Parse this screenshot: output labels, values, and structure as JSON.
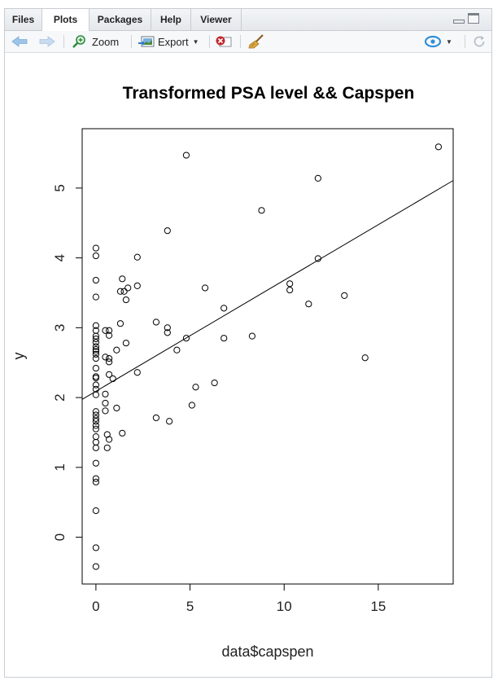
{
  "tabs": [
    {
      "label": "Files",
      "active": false
    },
    {
      "label": "Plots",
      "active": true
    },
    {
      "label": "Packages",
      "active": false
    },
    {
      "label": "Help",
      "active": false
    },
    {
      "label": "Viewer",
      "active": false
    }
  ],
  "toolbar": {
    "zoom_label": "Zoom",
    "export_label": "Export",
    "icons": [
      "back-arrow-icon",
      "forward-arrow-icon",
      "zoom-icon",
      "export-icon",
      "remove-plot-icon",
      "broom-icon",
      "publish-icon",
      "refresh-icon"
    ]
  },
  "colors": {
    "accent_blue": "#2f8fd8",
    "remove_red": "#c0282c",
    "broom": "#b7862c"
  },
  "chart_data": {
    "type": "scatter",
    "title": "Transformed PSA level && Capspen",
    "xlabel": "data$capspen",
    "ylabel": "y",
    "xlim": [
      -0.73,
      18.98
    ],
    "ylim": [
      -0.67,
      5.85
    ],
    "xticks": [
      0,
      5,
      10,
      15
    ],
    "yticks": [
      0,
      1,
      2,
      3,
      4,
      5
    ],
    "grid": false,
    "legend": "none",
    "trendline": {
      "intercept": 2.09,
      "slope": 0.159
    },
    "points": [
      {
        "x": 0,
        "y": 4.14
      },
      {
        "x": 0,
        "y": 4.03
      },
      {
        "x": 0,
        "y": 3.68
      },
      {
        "x": 0,
        "y": 3.44
      },
      {
        "x": 0,
        "y": 3.03
      },
      {
        "x": 0,
        "y": 2.96
      },
      {
        "x": 0,
        "y": 2.88
      },
      {
        "x": 0,
        "y": 2.84
      },
      {
        "x": 0,
        "y": 2.79
      },
      {
        "x": 0,
        "y": 2.73
      },
      {
        "x": 0,
        "y": 2.69
      },
      {
        "x": 0,
        "y": 2.66
      },
      {
        "x": 0,
        "y": 2.62
      },
      {
        "x": 0,
        "y": 2.56
      },
      {
        "x": 0,
        "y": 2.42
      },
      {
        "x": 0,
        "y": 2.3
      },
      {
        "x": 0,
        "y": 2.28
      },
      {
        "x": 0,
        "y": 2.18
      },
      {
        "x": 0,
        "y": 2.12
      },
      {
        "x": 0,
        "y": 2.04
      },
      {
        "x": 0,
        "y": 1.8
      },
      {
        "x": 0,
        "y": 1.75
      },
      {
        "x": 0,
        "y": 1.7
      },
      {
        "x": 0,
        "y": 1.66
      },
      {
        "x": 0,
        "y": 1.6
      },
      {
        "x": 0,
        "y": 1.55
      },
      {
        "x": 0,
        "y": 1.44
      },
      {
        "x": 0,
        "y": 1.36
      },
      {
        "x": 0,
        "y": 1.28
      },
      {
        "x": 0,
        "y": 1.06
      },
      {
        "x": 0,
        "y": 0.84
      },
      {
        "x": 0,
        "y": 0.79
      },
      {
        "x": 0,
        "y": 0.38
      },
      {
        "x": 0,
        "y": -0.15
      },
      {
        "x": 0,
        "y": -0.42
      },
      {
        "x": 0.5,
        "y": 2.96
      },
      {
        "x": 0.5,
        "y": 2.58
      },
      {
        "x": 0.5,
        "y": 2.05
      },
      {
        "x": 0.5,
        "y": 1.92
      },
      {
        "x": 0.5,
        "y": 1.81
      },
      {
        "x": 0.6,
        "y": 1.47
      },
      {
        "x": 0.6,
        "y": 1.28
      },
      {
        "x": 0.7,
        "y": 2.96
      },
      {
        "x": 0.7,
        "y": 2.89
      },
      {
        "x": 0.7,
        "y": 2.56
      },
      {
        "x": 0.7,
        "y": 2.51
      },
      {
        "x": 0.7,
        "y": 2.33
      },
      {
        "x": 0.7,
        "y": 1.4
      },
      {
        "x": 0.9,
        "y": 2.27
      },
      {
        "x": 1.1,
        "y": 2.68
      },
      {
        "x": 1.1,
        "y": 1.85
      },
      {
        "x": 1.3,
        "y": 3.06
      },
      {
        "x": 1.3,
        "y": 3.52
      },
      {
        "x": 1.4,
        "y": 3.7
      },
      {
        "x": 1.5,
        "y": 3.52
      },
      {
        "x": 1.4,
        "y": 1.49
      },
      {
        "x": 1.6,
        "y": 3.4
      },
      {
        "x": 1.6,
        "y": 2.78
      },
      {
        "x": 1.7,
        "y": 3.57
      },
      {
        "x": 2.2,
        "y": 4.01
      },
      {
        "x": 2.2,
        "y": 3.6
      },
      {
        "x": 2.2,
        "y": 2.36
      },
      {
        "x": 3.2,
        "y": 3.08
      },
      {
        "x": 3.2,
        "y": 1.71
      },
      {
        "x": 3.8,
        "y": 4.39
      },
      {
        "x": 3.8,
        "y": 3.0
      },
      {
        "x": 3.8,
        "y": 2.93
      },
      {
        "x": 3.9,
        "y": 1.66
      },
      {
        "x": 4.3,
        "y": 2.68
      },
      {
        "x": 4.8,
        "y": 5.47
      },
      {
        "x": 4.8,
        "y": 2.85
      },
      {
        "x": 5.1,
        "y": 1.89
      },
      {
        "x": 5.3,
        "y": 2.15
      },
      {
        "x": 5.8,
        "y": 3.57
      },
      {
        "x": 6.3,
        "y": 2.21
      },
      {
        "x": 6.8,
        "y": 3.28
      },
      {
        "x": 6.8,
        "y": 2.85
      },
      {
        "x": 8.3,
        "y": 2.88
      },
      {
        "x": 8.8,
        "y": 4.68
      },
      {
        "x": 10.3,
        "y": 3.63
      },
      {
        "x": 10.3,
        "y": 3.54
      },
      {
        "x": 11.3,
        "y": 3.34
      },
      {
        "x": 11.8,
        "y": 5.14
      },
      {
        "x": 11.8,
        "y": 3.99
      },
      {
        "x": 13.2,
        "y": 3.46
      },
      {
        "x": 14.3,
        "y": 2.57
      },
      {
        "x": 18.2,
        "y": 5.59
      }
    ]
  }
}
